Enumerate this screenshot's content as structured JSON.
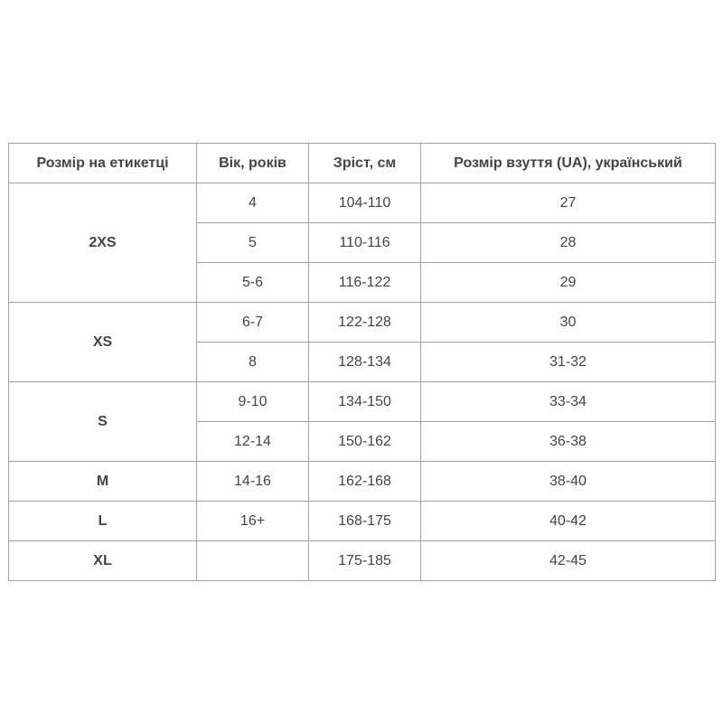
{
  "headers": [
    "Розмір на етикетці",
    "Вік, років",
    "Зріст, см",
    "Розмір взуття (UA), український"
  ],
  "groups": [
    {
      "size": "2XS",
      "rows": [
        [
          "4",
          "104-110",
          "27"
        ],
        [
          "5",
          "110-116",
          "28"
        ],
        [
          "5-6",
          "116-122",
          "29"
        ]
      ]
    },
    {
      "size": "XS",
      "rows": [
        [
          "6-7",
          "122-128",
          "30"
        ],
        [
          "8",
          "128-134",
          "31-32"
        ]
      ]
    },
    {
      "size": "S",
      "rows": [
        [
          "9-10",
          "134-150",
          "33-34"
        ],
        [
          "12-14",
          "150-162",
          "36-38"
        ]
      ]
    },
    {
      "size": "M",
      "rows": [
        [
          "14-16",
          "162-168",
          "38-40"
        ]
      ]
    },
    {
      "size": "L",
      "rows": [
        [
          "16+",
          "168-175",
          "40-42"
        ]
      ]
    },
    {
      "size": "XL",
      "rows": [
        [
          "",
          "175-185",
          "42-45"
        ]
      ]
    }
  ]
}
